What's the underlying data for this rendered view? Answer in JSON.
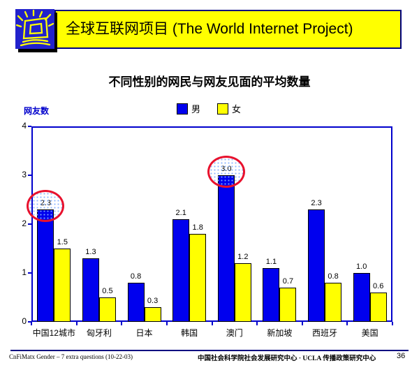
{
  "header": {
    "title": "全球互联网项目 (The World Internet Project)",
    "banner_bg": "#FFFF00",
    "banner_border": "#000080",
    "logo_bg": "#2222CC",
    "logo_icon": "sketched-computer-monitor-with-rays"
  },
  "chart_data": {
    "type": "bar",
    "title": "不同性别的网民与网友见面的平均数量",
    "ylabel": "网友数",
    "xlabel": "",
    "categories": [
      "中国12城市",
      "匈牙利",
      "日本",
      "韩国",
      "澳门",
      "新加坡",
      "西班牙",
      "美国"
    ],
    "series": [
      {
        "name": "男",
        "color": "#0000EE",
        "values": [
          2.3,
          1.3,
          0.8,
          2.1,
          3.0,
          1.1,
          2.3,
          1.0
        ]
      },
      {
        "name": "女",
        "color": "#FFFF00",
        "values": [
          1.5,
          0.5,
          0.3,
          1.8,
          1.2,
          0.7,
          0.8,
          0.6
        ]
      }
    ],
    "ylim": [
      0,
      4
    ],
    "yticks": [
      0,
      1,
      2,
      3,
      4
    ],
    "grid": false,
    "legend_position": "top",
    "axis_color": "#0000CC",
    "annotations": [
      {
        "type": "ellipse",
        "series": "男",
        "category": "中国12城市",
        "label": "2.3",
        "color": "#E8112D"
      },
      {
        "type": "ellipse",
        "series": "男",
        "category": "澳门",
        "label": "3.0",
        "color": "#E8112D"
      }
    ]
  },
  "footer": {
    "left": "CnFiMatx Gender – 7 extra questions (10-22-03)",
    "center": "中国社会科学院社会发展研究中心 · UCLA 传播政策研究中心",
    "page": "36",
    "line_color": "#000080"
  }
}
